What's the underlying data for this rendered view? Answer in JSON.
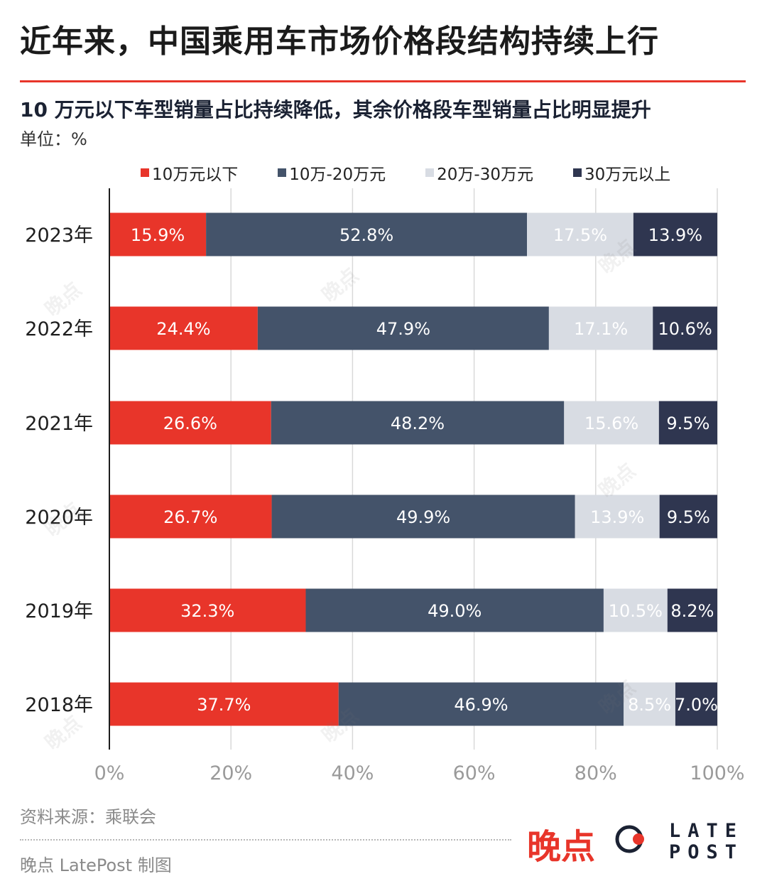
{
  "title": "近年来，中国乘用车市场价格段结构持续上行",
  "subtitle": "10 万元以下车型销量占比持续降低，其余价格段车型销量占比明显提升",
  "unit": "单位：%",
  "source": "资料来源：乘联会",
  "credit": "晚点 LatePost 制图",
  "logo": {
    "cn": "晚点",
    "line1": "LATE",
    "line2": "POST",
    "watermark_cn": "晚点",
    "watermark_en": "LATE POST"
  },
  "colors": {
    "s1": "#e8352a",
    "s2": "#44536a",
    "s3": "#d8dce3",
    "s4": "#2f3650",
    "accent": "#e8352a"
  },
  "chart_data": {
    "type": "bar",
    "orientation": "horizontal",
    "stacked": true,
    "title": "近年来，中国乘用车市场价格段结构持续上行",
    "xlabel": "",
    "ylabel": "",
    "xlim": [
      0,
      100
    ],
    "x_ticks": [
      "0%",
      "20%",
      "40%",
      "60%",
      "80%",
      "100%"
    ],
    "x_tick_values": [
      0,
      20,
      40,
      60,
      80,
      100
    ],
    "grid": true,
    "legend_position": "top",
    "categories": [
      "2023年",
      "2022年",
      "2021年",
      "2020年",
      "2019年",
      "2018年"
    ],
    "series": [
      {
        "name": "10万元以下",
        "values": [
          15.9,
          24.4,
          26.6,
          26.7,
          32.3,
          37.7
        ],
        "labels": [
          "15.9%",
          "24.4%",
          "26.6%",
          "26.7%",
          "32.3%",
          "37.7%"
        ]
      },
      {
        "name": "10万-20万元",
        "values": [
          52.8,
          47.9,
          48.2,
          49.9,
          49.0,
          46.9
        ],
        "labels": [
          "52.8%",
          "47.9%",
          "48.2%",
          "49.9%",
          "49.0%",
          "46.9%"
        ]
      },
      {
        "name": "20万-30万元",
        "values": [
          17.5,
          17.1,
          15.6,
          13.9,
          10.5,
          8.5
        ],
        "labels": [
          "17.5%",
          "17.1%",
          "15.6%",
          "13.9%",
          "10.5%",
          "8.5%"
        ]
      },
      {
        "name": "30万元以上",
        "values": [
          13.9,
          10.6,
          9.5,
          9.5,
          8.2,
          7.0
        ],
        "labels": [
          "13.9%",
          "10.6%",
          "9.5%",
          "9.5%",
          "8.2%",
          "7.0%"
        ]
      }
    ]
  }
}
